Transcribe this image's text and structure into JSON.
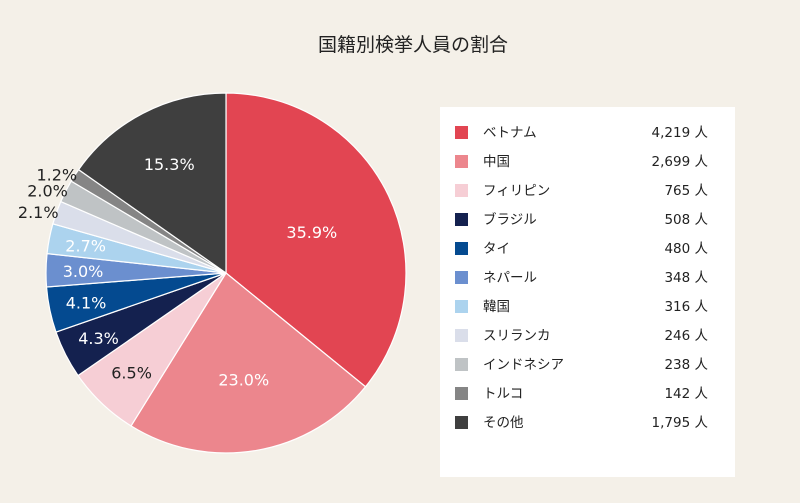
{
  "chart_data": {
    "type": "pie",
    "title": "国籍別検挙人員の割合",
    "unit": "人",
    "slices": [
      {
        "label": "ベトナム",
        "value": 4219,
        "value_text": "4,219",
        "percent": "35.9%",
        "color": "#e24552"
      },
      {
        "label": "中国",
        "value": 2699,
        "value_text": "2,699",
        "percent": "23.0%",
        "color": "#ec868d"
      },
      {
        "label": "フィリピン",
        "value": 765,
        "value_text": "765",
        "percent": "6.5%",
        "color": "#f6ced5"
      },
      {
        "label": "ブラジル",
        "value": 508,
        "value_text": "508",
        "percent": "4.3%",
        "color": "#14214f"
      },
      {
        "label": "タイ",
        "value": 480,
        "value_text": "480",
        "percent": "4.1%",
        "color": "#044a90"
      },
      {
        "label": "ネパール",
        "value": 348,
        "value_text": "348",
        "percent": "3.0%",
        "color": "#6b8fcf"
      },
      {
        "label": "韓国",
        "value": 316,
        "value_text": "316",
        "percent": "2.7%",
        "color": "#acd3ee"
      },
      {
        "label": "スリランカ",
        "value": 246,
        "value_text": "246",
        "percent": "2.1%",
        "color": "#dadeea"
      },
      {
        "label": "インドネシア",
        "value": 238,
        "value_text": "238",
        "percent": "2.0%",
        "color": "#bfc3c5"
      },
      {
        "label": "トルコ",
        "value": 142,
        "value_text": "142",
        "percent": "1.2%",
        "color": "#858585"
      },
      {
        "label": "その他",
        "value": 1795,
        "value_text": "1,795",
        "percent": "15.3%",
        "color": "#3f3f3f"
      }
    ],
    "legend": "right"
  }
}
